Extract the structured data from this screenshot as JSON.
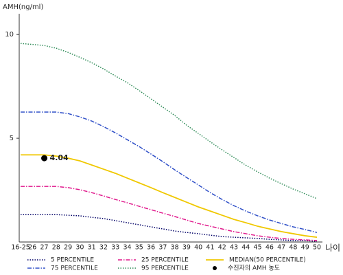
{
  "chart_data": {
    "type": "line",
    "y_label": "AMH(ng/ml)",
    "x_label": "나이",
    "categories": [
      "16-25",
      "26",
      "27",
      "28",
      "29",
      "30",
      "31",
      "32",
      "33",
      "34",
      "35",
      "36",
      "37",
      "38",
      "39",
      "40",
      "41",
      "42",
      "43",
      "44",
      "45",
      "46",
      "47",
      "48",
      "49",
      "50"
    ],
    "ylim": [
      0,
      11
    ],
    "yticks": [
      5,
      10
    ],
    "series": [
      {
        "name": "5 PERCENTILE",
        "color": "#000066",
        "style": "dotted",
        "values": [
          1.32,
          1.32,
          1.32,
          1.32,
          1.29,
          1.26,
          1.19,
          1.13,
          1.03,
          0.93,
          0.83,
          0.73,
          0.63,
          0.53,
          0.46,
          0.4,
          0.33,
          0.26,
          0.23,
          0.2,
          0.17,
          0.13,
          0.1,
          0.07,
          0.07,
          0.03
        ]
      },
      {
        "name": "25 PERCENTILE",
        "color": "#e0188c",
        "style": "dashdot",
        "values": [
          2.68,
          2.68,
          2.68,
          2.68,
          2.62,
          2.52,
          2.38,
          2.22,
          2.05,
          1.89,
          1.72,
          1.56,
          1.39,
          1.23,
          1.06,
          0.89,
          0.76,
          0.63,
          0.5,
          0.4,
          0.3,
          0.23,
          0.17,
          0.13,
          0.1,
          0.07
        ]
      },
      {
        "name": "MEDIAN(50 PERCENTILE)",
        "color": "#f0c800",
        "style": "solid",
        "values": [
          4.2,
          4.2,
          4.2,
          4.14,
          4.04,
          3.91,
          3.71,
          3.51,
          3.31,
          3.08,
          2.85,
          2.62,
          2.38,
          2.15,
          1.92,
          1.69,
          1.49,
          1.29,
          1.09,
          0.93,
          0.76,
          0.63,
          0.5,
          0.4,
          0.3,
          0.23
        ]
      },
      {
        "name": "75 PERCENTILE",
        "color": "#3050c8",
        "style": "dashdot",
        "values": [
          6.26,
          6.26,
          6.26,
          6.26,
          6.19,
          6.03,
          5.83,
          5.56,
          5.26,
          4.93,
          4.6,
          4.24,
          3.87,
          3.48,
          3.11,
          2.75,
          2.38,
          2.05,
          1.75,
          1.49,
          1.26,
          1.06,
          0.89,
          0.73,
          0.6,
          0.46
        ]
      },
      {
        "name": "95 PERCENTILE",
        "color": "#2e8b57",
        "style": "dotted",
        "values": [
          9.57,
          9.52,
          9.47,
          9.34,
          9.14,
          8.9,
          8.64,
          8.34,
          8.0,
          7.68,
          7.3,
          6.9,
          6.5,
          6.1,
          5.63,
          5.23,
          4.83,
          4.44,
          4.07,
          3.7,
          3.38,
          3.08,
          2.81,
          2.55,
          2.32,
          2.09
        ]
      }
    ],
    "marker": {
      "name": "수진자의 AMH 농도",
      "category_index": 2,
      "value": 4.04,
      "color": "#000000"
    }
  }
}
